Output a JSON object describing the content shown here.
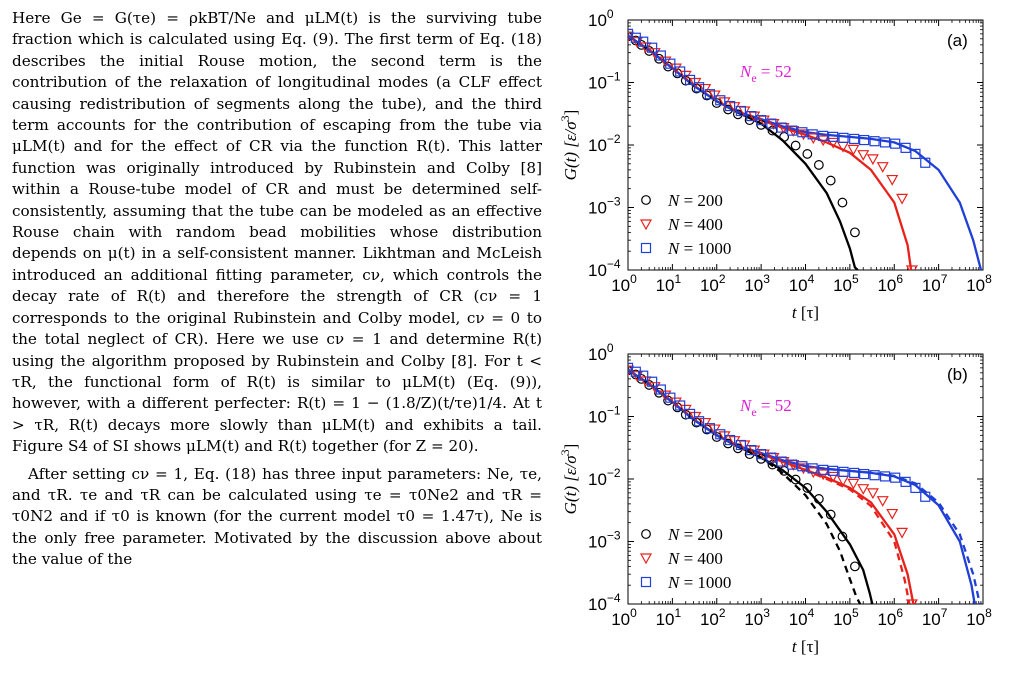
{
  "text_paragraphs": [
    "Here Ge = G(τe) = ρkBT/Ne and μLM(t) is the surviving tube fraction which is calculated using Eq. (9). The first term of Eq. (18) describes the initial Rouse motion, the second term is the contribution of the relaxation of longitudinal modes (a CLF effect causing redistribution of segments along the tube), and the third term accounts for the contribution of escaping from the tube via μLM(t) and for the effect of CR via the function R(t). This latter function was originally introduced by Rubinstein and Colby [8] within a Rouse-tube model of CR and must be determined self-consistently, assuming that the tube can be modeled as an effective Rouse chain with random bead mobilities whose distribution depends on μ(t) in a self-consistent manner. Likhtman and McLeish introduced an additional fitting parameter, cν, which controls the decay rate of R(t) and therefore the strength of CR (cν = 1 corresponds to the original Rubinstein and Colby model, cν = 0 to the total neglect of CR). Here we use cν = 1 and determine R(t) using the algorithm proposed by Rubinstein and Colby [8]. For t < τR, the functional form of R(t) is similar to μLM(t) (Eq. (9)), however, with a different perfecter: R(t) = 1 − (1.8/Z)(t/τe)1/4. At t > τR, R(t) decays more slowly than μLM(t) and exhibits a tail. Figure S4 of SI shows μLM(t) and R(t) together (for Z = 20).",
    "After setting cν = 1, Eq. (18) has three input parameters: Ne, τe, and τR. τe and τR can be calculated using τe = τ0Ne2 and τR = τ0N2 and if τ0 is known (for the current model τ0 = 1.47τ), Ne is the only free parameter. Motivated by the discussion above about the value of the"
  ],
  "chart_data": [
    {
      "type": "scatter",
      "panel_label": "(a)",
      "annotation": "Ne = 52",
      "xlabel": "t [τ]",
      "ylabel": "G(t) [ε/σ3]",
      "x_scale": "log",
      "y_scale": "log",
      "xlim": [
        1,
        100000000
      ],
      "ylim": [
        0.0001,
        1
      ],
      "x_ticks": [
        "10^0",
        "10^1",
        "10^2",
        "10^3",
        "10^4",
        "10^5",
        "10^6",
        "10^7",
        "10^8"
      ],
      "y_ticks": [
        "10^-4",
        "10^-3",
        "10^-2",
        "10^-1",
        "10^0"
      ],
      "legend_position": "bottom-left",
      "series": [
        {
          "name": "N = 200",
          "marker": "circle",
          "color": "#000000",
          "x": [
            1,
            1.5,
            2,
            3,
            5,
            8,
            13,
            20,
            35,
            60,
            100,
            180,
            300,
            550,
            1000,
            1800,
            3300,
            6000,
            11000,
            20000,
            37000,
            68000,
            130000
          ],
          "y": [
            0.55,
            0.47,
            0.4,
            0.32,
            0.24,
            0.18,
            0.14,
            0.107,
            0.08,
            0.062,
            0.047,
            0.037,
            0.031,
            0.025,
            0.021,
            0.017,
            0.0135,
            0.0098,
            0.0072,
            0.0048,
            0.0027,
            0.0012,
            0.0004
          ]
        },
        {
          "name": "N = 400",
          "marker": "triangle-down",
          "color": "#e8211b",
          "x": [
            1,
            1.6,
            2.5,
            4,
            7,
            12,
            20,
            33,
            55,
            90,
            150,
            250,
            420,
            700,
            1150,
            1900,
            3200,
            5300,
            9000,
            15000,
            25000,
            42000,
            70000,
            120000,
            200000,
            330000,
            550000,
            900000,
            1500000,
            2500000
          ],
          "y": [
            0.55,
            0.45,
            0.37,
            0.3,
            0.22,
            0.17,
            0.13,
            0.1,
            0.08,
            0.063,
            0.049,
            0.041,
            0.035,
            0.029,
            0.025,
            0.022,
            0.019,
            0.017,
            0.015,
            0.013,
            0.012,
            0.011,
            0.0095,
            0.0085,
            0.007,
            0.006,
            0.0045,
            0.0028,
            0.0014,
            0.0001
          ]
        },
        {
          "name": "N = 1000",
          "marker": "square",
          "color": "#1f3fd6",
          "x": [
            1,
            1.5,
            2.2,
            3.5,
            5.5,
            9,
            15,
            25,
            40,
            70,
            120,
            200,
            350,
            600,
            1000,
            1700,
            2900,
            5000,
            8500,
            14500,
            25000,
            42000,
            72000,
            125000,
            210000,
            360000,
            620000,
            1050000,
            1800000,
            3000000,
            5000000
          ],
          "y": [
            0.6,
            0.52,
            0.45,
            0.36,
            0.27,
            0.2,
            0.15,
            0.11,
            0.084,
            0.065,
            0.052,
            0.042,
            0.035,
            0.029,
            0.025,
            0.022,
            0.019,
            0.017,
            0.016,
            0.0148,
            0.014,
            0.0135,
            0.013,
            0.0125,
            0.012,
            0.0115,
            0.011,
            0.0105,
            0.009,
            0.0072,
            0.0052
          ]
        }
      ],
      "curves": [
        {
          "color": "#000000",
          "style": "solid",
          "x": [
            1,
            3,
            10,
            30,
            100,
            300,
            1000,
            3000,
            10000,
            30000,
            60000,
            100000,
            130000,
            150000
          ],
          "y": [
            0.56,
            0.33,
            0.17,
            0.09,
            0.05,
            0.033,
            0.022,
            0.012,
            0.005,
            0.0017,
            0.0006,
            0.00022,
            0.00011,
            0.0001
          ]
        },
        {
          "color": "#e8211b",
          "style": "solid",
          "x": [
            1,
            3,
            10,
            30,
            100,
            300,
            1000,
            3000,
            10000,
            30000,
            100000,
            300000,
            1000000,
            2000000,
            2400000
          ],
          "y": [
            0.56,
            0.33,
            0.17,
            0.09,
            0.05,
            0.034,
            0.025,
            0.019,
            0.0145,
            0.011,
            0.0075,
            0.004,
            0.0012,
            0.00025,
            0.0001
          ]
        },
        {
          "color": "#1f3fd6",
          "style": "solid",
          "x": [
            1,
            3,
            10,
            30,
            100,
            300,
            1000,
            3000,
            10000,
            30000,
            100000,
            300000,
            1000000,
            3000000,
            10000000,
            30000000,
            60000000,
            90000000
          ],
          "y": [
            0.56,
            0.33,
            0.17,
            0.09,
            0.05,
            0.034,
            0.026,
            0.02,
            0.016,
            0.0145,
            0.0135,
            0.0125,
            0.011,
            0.008,
            0.004,
            0.0012,
            0.0003,
            0.0001
          ]
        }
      ]
    },
    {
      "type": "scatter",
      "panel_label": "(b)",
      "annotation": "Ne = 52",
      "xlabel": "t [τ]",
      "ylabel": "G(t) [ε/σ3]",
      "x_scale": "log",
      "y_scale": "log",
      "xlim": [
        1,
        100000000
      ],
      "ylim": [
        0.0001,
        1
      ],
      "x_ticks": [
        "10^0",
        "10^1",
        "10^2",
        "10^3",
        "10^4",
        "10^5",
        "10^6",
        "10^7",
        "10^8"
      ],
      "y_ticks": [
        "10^-4",
        "10^-3",
        "10^-2",
        "10^-1",
        "10^0"
      ],
      "legend_position": "bottom-left",
      "series": [
        {
          "name": "N = 200",
          "marker": "circle",
          "color": "#000000",
          "x": [
            1,
            1.5,
            2,
            3,
            5,
            8,
            13,
            20,
            35,
            60,
            100,
            180,
            300,
            550,
            1000,
            1800,
            3300,
            6000,
            11000,
            20000,
            37000,
            68000,
            130000
          ],
          "y": [
            0.55,
            0.47,
            0.4,
            0.32,
            0.24,
            0.18,
            0.14,
            0.107,
            0.08,
            0.062,
            0.047,
            0.037,
            0.031,
            0.025,
            0.021,
            0.017,
            0.0135,
            0.0098,
            0.0072,
            0.0048,
            0.0027,
            0.0012,
            0.0004
          ]
        },
        {
          "name": "N = 400",
          "marker": "triangle-down",
          "color": "#e8211b",
          "x": [
            1,
            1.6,
            2.5,
            4,
            7,
            12,
            20,
            33,
            55,
            90,
            150,
            250,
            420,
            700,
            1150,
            1900,
            3200,
            5300,
            9000,
            15000,
            25000,
            42000,
            70000,
            120000,
            200000,
            330000,
            550000,
            900000,
            1500000,
            2500000
          ],
          "y": [
            0.55,
            0.45,
            0.37,
            0.3,
            0.22,
            0.17,
            0.13,
            0.1,
            0.08,
            0.063,
            0.049,
            0.041,
            0.035,
            0.029,
            0.025,
            0.022,
            0.019,
            0.017,
            0.015,
            0.013,
            0.012,
            0.011,
            0.0095,
            0.0085,
            0.007,
            0.006,
            0.0045,
            0.0028,
            0.0014,
            0.0001
          ]
        },
        {
          "name": "N = 1000",
          "marker": "square",
          "color": "#1f3fd6",
          "x": [
            1,
            1.5,
            2.2,
            3.5,
            5.5,
            9,
            15,
            25,
            40,
            70,
            120,
            200,
            350,
            600,
            1000,
            1700,
            2900,
            5000,
            8500,
            14500,
            25000,
            42000,
            72000,
            125000,
            210000,
            360000,
            620000,
            1050000,
            1800000,
            3000000,
            5000000
          ],
          "y": [
            0.6,
            0.52,
            0.45,
            0.36,
            0.27,
            0.2,
            0.15,
            0.11,
            0.084,
            0.065,
            0.052,
            0.042,
            0.035,
            0.029,
            0.025,
            0.022,
            0.019,
            0.017,
            0.016,
            0.0148,
            0.014,
            0.0135,
            0.013,
            0.0125,
            0.012,
            0.0115,
            0.011,
            0.0105,
            0.009,
            0.0072,
            0.0052
          ]
        }
      ],
      "curves": [
        {
          "color": "#000000",
          "style": "solid",
          "x": [
            1,
            3,
            10,
            30,
            100,
            300,
            1000,
            3000,
            10000,
            30000,
            100000,
            200000,
            280000,
            320000
          ],
          "y": [
            0.56,
            0.33,
            0.17,
            0.09,
            0.05,
            0.033,
            0.022,
            0.014,
            0.0072,
            0.003,
            0.0009,
            0.00035,
            0.00015,
            0.0001
          ]
        },
        {
          "color": "#000000",
          "style": "dashed",
          "x": [
            1,
            3,
            10,
            30,
            100,
            300,
            1000,
            3000,
            10000,
            30000,
            60000,
            100000,
            140000,
            170000
          ],
          "y": [
            0.56,
            0.33,
            0.17,
            0.09,
            0.05,
            0.033,
            0.022,
            0.0125,
            0.0055,
            0.0019,
            0.0007,
            0.00025,
            0.00013,
            0.0001
          ]
        },
        {
          "color": "#e8211b",
          "style": "solid",
          "x": [
            1,
            3,
            10,
            30,
            100,
            300,
            1000,
            3000,
            10000,
            30000,
            100000,
            300000,
            1000000,
            2000000,
            2700000
          ],
          "y": [
            0.56,
            0.33,
            0.17,
            0.09,
            0.05,
            0.034,
            0.025,
            0.019,
            0.014,
            0.0105,
            0.0072,
            0.0042,
            0.0013,
            0.0003,
            0.0001
          ]
        },
        {
          "color": "#e8211b",
          "style": "dashed",
          "x": [
            1,
            3,
            10,
            30,
            100,
            300,
            1000,
            3000,
            10000,
            30000,
            100000,
            300000,
            1000000,
            1700000,
            2200000
          ],
          "y": [
            0.56,
            0.33,
            0.17,
            0.09,
            0.05,
            0.034,
            0.025,
            0.019,
            0.0138,
            0.01,
            0.0068,
            0.0037,
            0.001,
            0.00025,
            0.0001
          ]
        },
        {
          "color": "#1f3fd6",
          "style": "solid",
          "x": [
            1,
            3,
            10,
            30,
            100,
            300,
            1000,
            3000,
            10000,
            30000,
            100000,
            300000,
            1000000,
            3000000,
            10000000,
            30000000,
            55000000,
            65000000
          ],
          "y": [
            0.56,
            0.33,
            0.17,
            0.09,
            0.05,
            0.034,
            0.026,
            0.02,
            0.016,
            0.0145,
            0.0135,
            0.0125,
            0.011,
            0.008,
            0.0038,
            0.001,
            0.0002,
            0.0001
          ]
        },
        {
          "color": "#1f3fd6",
          "style": "dashed",
          "x": [
            1,
            3,
            10,
            30,
            100,
            300,
            1000,
            3000,
            10000,
            30000,
            100000,
            300000,
            1000000,
            3000000,
            10000000,
            30000000,
            60000000,
            85000000
          ],
          "y": [
            0.56,
            0.33,
            0.17,
            0.09,
            0.05,
            0.034,
            0.026,
            0.02,
            0.016,
            0.0145,
            0.0135,
            0.0126,
            0.0112,
            0.0085,
            0.0042,
            0.0013,
            0.0003,
            0.0001
          ]
        }
      ]
    }
  ]
}
